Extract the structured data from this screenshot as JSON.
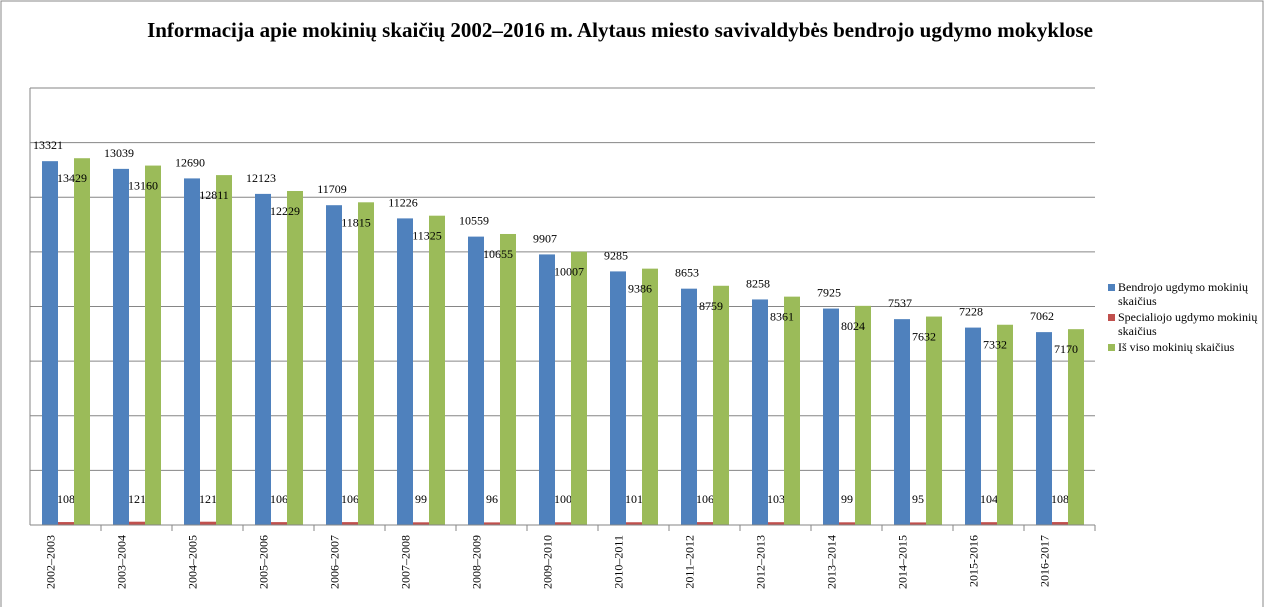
{
  "chart_data": {
    "type": "bar",
    "title": "Informacija  apie mokinių  skaičių 2002–2016 m. Alytaus miesto savivaldybės bendrojo ugdymo mokyklose",
    "categories": [
      "2002–2003",
      "2003–2004",
      "2004–2005",
      "2005–2006",
      "2006–2007",
      "2007–2008",
      "2008–2009",
      "2009–2010",
      "2010–2011",
      "2011–2012",
      "2012–2013",
      "2013–2014",
      "2014–2015",
      "2015-2016",
      "2016-2017"
    ],
    "series": [
      {
        "name": "Bendrojo ugdymo mokinių skaičius",
        "color": "#4f81bd",
        "values": [
          13321,
          13039,
          12690,
          12123,
          11709,
          11226,
          10559,
          9907,
          9285,
          8653,
          8258,
          7925,
          7537,
          7228,
          7062
        ]
      },
      {
        "name": "Specialiojo ugdymo mokinių skaičius",
        "color": "#c0504d",
        "values": [
          108,
          121,
          121,
          106,
          106,
          99,
          96,
          100,
          101,
          106,
          103,
          99,
          95,
          104,
          108
        ]
      },
      {
        "name": "Iš viso mokinių skaičius",
        "color": "#9bbb59",
        "values": [
          13429,
          13160,
          12811,
          12229,
          11815,
          11325,
          10655,
          10007,
          9386,
          8759,
          8361,
          8024,
          7632,
          7332,
          7170
        ]
      }
    ],
    "ylim": [
      0,
      16000
    ],
    "yticks": [
      0,
      2000,
      4000,
      6000,
      8000,
      10000,
      12000,
      14000,
      16000
    ],
    "grid": true,
    "legend": "right"
  }
}
